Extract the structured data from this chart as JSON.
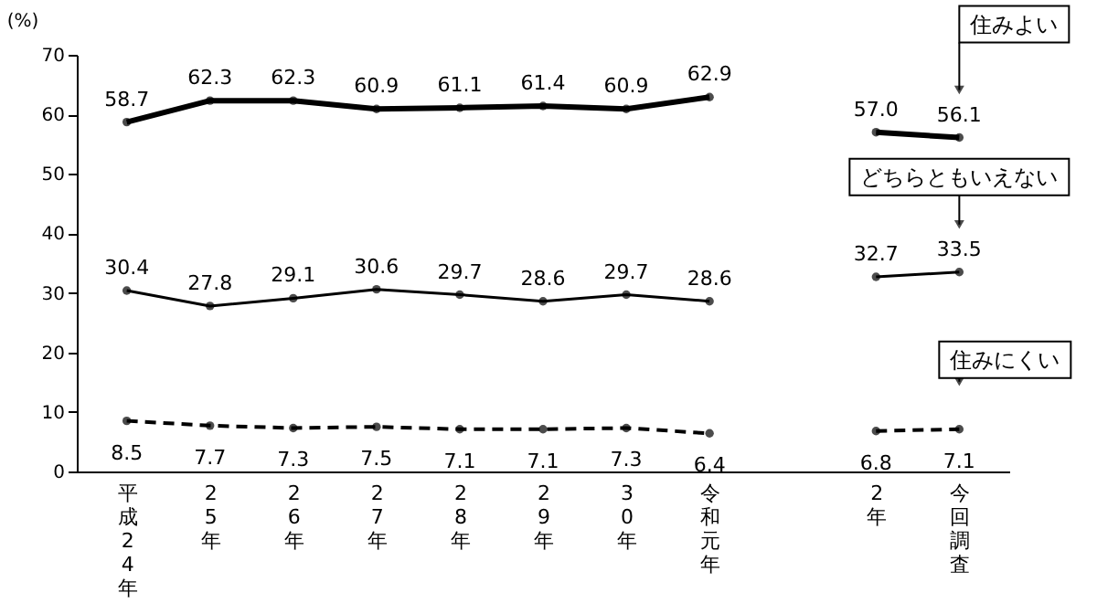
{
  "chart_data": {
    "type": "line",
    "ylabel": "(%)",
    "categories": [
      "平成24年",
      "25年",
      "26年",
      "27年",
      "28年",
      "29年",
      "30年",
      "令和元年",
      null,
      "2年",
      "今回調査"
    ],
    "ylim": [
      0,
      70
    ],
    "yticks": [
      0,
      10,
      20,
      30,
      40,
      50,
      60,
      70
    ],
    "marker": "circle",
    "series": [
      {
        "name": "住みよい",
        "color": "#000000",
        "line_style": "solid",
        "values": [
          58.7,
          62.3,
          62.3,
          60.9,
          61.1,
          61.4,
          60.9,
          62.9,
          null,
          57.0,
          56.1
        ],
        "value_labels": [
          "58.7",
          "62.3",
          "62.3",
          "60.9",
          "61.1",
          "61.4",
          "60.9",
          "62.9",
          null,
          "57.0",
          "56.1"
        ]
      },
      {
        "name": "どちらともいえない",
        "color": "#000000",
        "line_style": "solid",
        "values": [
          30.4,
          27.8,
          29.1,
          30.6,
          29.7,
          28.6,
          29.7,
          28.6,
          null,
          32.7,
          33.5
        ],
        "value_labels": [
          "30.4",
          "27.8",
          "29.1",
          "30.6",
          "29.7",
          "28.6",
          "29.7",
          "28.6",
          null,
          "32.7",
          "33.5"
        ]
      },
      {
        "name": "住みにくい",
        "color": "#000000",
        "line_style": "dashed",
        "values": [
          8.5,
          7.7,
          7.3,
          7.5,
          7.1,
          7.1,
          7.3,
          6.4,
          null,
          6.8,
          7.1
        ],
        "value_labels": [
          "8.5",
          "7.7",
          "7.3",
          "7.5",
          "7.1",
          "7.1",
          "7.3",
          "6.4",
          null,
          "6.8",
          "7.1"
        ]
      }
    ]
  }
}
